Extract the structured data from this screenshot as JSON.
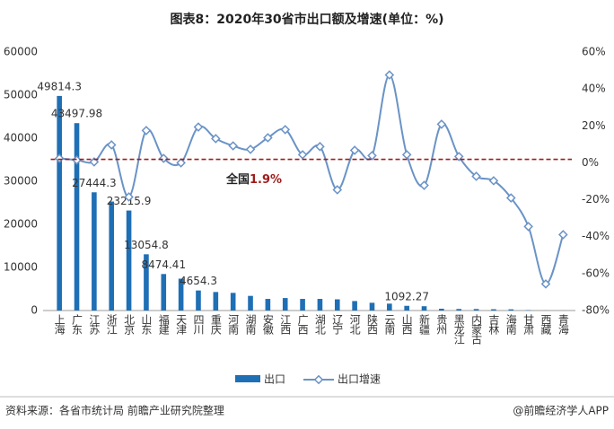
{
  "chart_data": {
    "type": "bar_line",
    "title": "图表8：2020年30省市出口额及增速(单位：%)",
    "categories": [
      "上海",
      "广东",
      "江苏",
      "浙江",
      "北京",
      "山东",
      "福建",
      "天津",
      "四川",
      "重庆",
      "河南",
      "湖南",
      "安徽",
      "江西",
      "广西",
      "湖北",
      "辽宁",
      "河北",
      "陕西",
      "云南",
      "山西",
      "新疆",
      "贵州",
      "黑龙江",
      "内蒙古",
      "吉林",
      "海南",
      "甘肃",
      "西藏",
      "青海"
    ],
    "series": [
      {
        "name": "出口",
        "type": "bar",
        "color": "#1f6fb5",
        "values": [
          49814.3,
          43497.98,
          27444.3,
          25300,
          23215.9,
          13054.8,
          8474.41,
          7400,
          4654.3,
          4300,
          4100,
          3400,
          2700,
          2900,
          2700,
          2700,
          2600,
          2200,
          1800,
          1600,
          1092.27,
          1000,
          420,
          360,
          350,
          300,
          280,
          90,
          15,
          12
        ],
        "value_labels": [
          "49814.3",
          "43497.98",
          "27444.3",
          null,
          "23215.9",
          "13054.8",
          "8474.41",
          null,
          "4654.3",
          null,
          null,
          null,
          null,
          null,
          null,
          null,
          null,
          null,
          null,
          null,
          "1092.27",
          null,
          null,
          null,
          null,
          null,
          null,
          null,
          null,
          null
        ]
      },
      {
        "name": "出口增速",
        "type": "line",
        "axis": "y2",
        "color": "#6a93c6",
        "values": [
          2.4,
          1.5,
          0.5,
          9.7,
          -18.5,
          17.5,
          2.4,
          0,
          19.4,
          13.1,
          9.2,
          7.3,
          13.6,
          18,
          4.4,
          8.8,
          -14.6,
          6.8,
          3.9,
          47.6,
          4.4,
          -12.2,
          20.9,
          3.4,
          -7.3,
          -9.7,
          -19,
          -34.5,
          -65.6,
          -38.9
        ]
      }
    ],
    "national": {
      "label": "全国",
      "value": 1.9,
      "value_label": "1.9%",
      "color": "#a01c1c"
    },
    "ylim": [
      0,
      60000
    ],
    "yticks": [
      0,
      10000,
      20000,
      30000,
      40000,
      50000,
      60000
    ],
    "y2lim": [
      -80,
      60
    ],
    "y2ticks": [
      {
        "value": -80,
        "label": "-80%"
      },
      {
        "value": -60,
        "label": "-60%"
      },
      {
        "value": -40,
        "label": "-40%"
      },
      {
        "value": -20,
        "label": "-20%"
      },
      {
        "value": 0,
        "label": "0%"
      },
      {
        "value": 20,
        "label": "20%"
      },
      {
        "value": 40,
        "label": "40%"
      },
      {
        "value": 60,
        "label": "60%"
      }
    ],
    "source": "资料来源：各省市统计局 前瞻产业研究院整理",
    "credit": "@前瞻经济学人APP"
  }
}
